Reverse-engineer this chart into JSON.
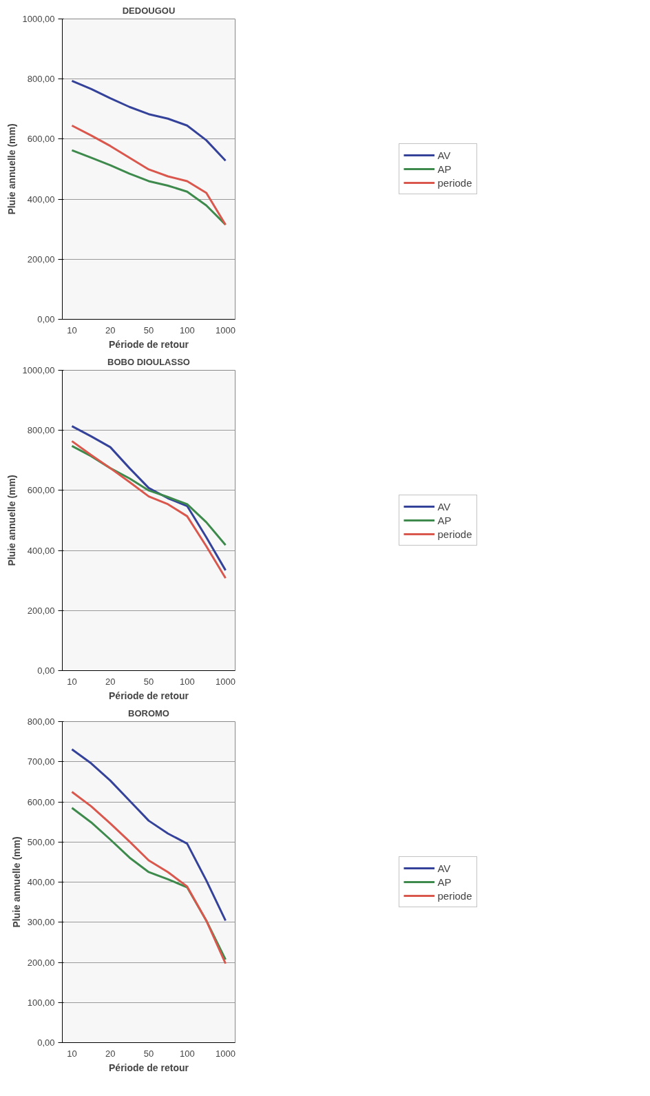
{
  "chart_data": [
    {
      "type": "line",
      "title": "DEDOUGOU",
      "xlabel": "Période de retour",
      "ylabel": "Pluie annuelle (mm)",
      "categories": [
        "10",
        null,
        "20",
        null,
        "50",
        null,
        "100",
        null,
        "1000"
      ],
      "ylim": [
        0,
        1000
      ],
      "yticks": [
        {
          "value": 0,
          "label": "0,00"
        },
        {
          "value": 200,
          "label": "200,00"
        },
        {
          "value": 400,
          "label": "400,00"
        },
        {
          "value": 600,
          "label": "600,00"
        },
        {
          "value": 800,
          "label": "800,00"
        },
        {
          "value": 1000,
          "label": "1000,00"
        }
      ],
      "grid": "y",
      "legend": "right",
      "marker": "none",
      "line_style": "solid",
      "series": [
        {
          "name": "AV",
          "color": "#34429a",
          "values": [
            794,
            767,
            736,
            707,
            683,
            668,
            645,
            596,
            528
          ]
        },
        {
          "name": "AP",
          "color": "#3d8a4c",
          "values": [
            563,
            538,
            513,
            485,
            460,
            445,
            425,
            379,
            315
          ]
        },
        {
          "name": "periode",
          "color": "#d9574c",
          "values": [
            645,
            612,
            577,
            538,
            499,
            476,
            460,
            421,
            315
          ]
        }
      ]
    },
    {
      "type": "line",
      "title": "BOBO DIOULASSO",
      "xlabel": "Période de retour",
      "ylabel": "Pluie annuelle (mm)",
      "categories": [
        "10",
        null,
        "20",
        null,
        "50",
        null,
        "100",
        null,
        "1000"
      ],
      "ylim": [
        0,
        1000
      ],
      "yticks": [
        {
          "value": 0,
          "label": "0,00"
        },
        {
          "value": 200,
          "label": "200,00"
        },
        {
          "value": 400,
          "label": "400,00"
        },
        {
          "value": 600,
          "label": "600,00"
        },
        {
          "value": 800,
          "label": "800,00"
        },
        {
          "value": 1000,
          "label": "1000,00"
        }
      ],
      "grid": "y",
      "legend": "right",
      "marker": "none",
      "line_style": "solid",
      "series": [
        {
          "name": "AV",
          "color": "#34429a",
          "values": [
            814,
            780,
            744,
            674,
            608,
            574,
            548,
            444,
            334
          ]
        },
        {
          "name": "AP",
          "color": "#3d8a4c",
          "values": [
            748,
            714,
            674,
            640,
            600,
            578,
            554,
            494,
            418
          ]
        },
        {
          "name": "periode",
          "color": "#d9574c",
          "values": [
            764,
            718,
            674,
            628,
            580,
            554,
            514,
            414,
            308
          ]
        }
      ]
    },
    {
      "type": "line",
      "title": "BOROMO",
      "xlabel": "Période de retour",
      "ylabel": "Pluie annuelle (mm)",
      "categories": [
        "10",
        null,
        "20",
        null,
        "50",
        null,
        "100",
        null,
        "1000"
      ],
      "ylim": [
        0,
        800
      ],
      "yticks": [
        {
          "value": 0,
          "label": "0,00"
        },
        {
          "value": 100,
          "label": "100,00"
        },
        {
          "value": 200,
          "label": "200,00"
        },
        {
          "value": 300,
          "label": "300,00"
        },
        {
          "value": 400,
          "label": "400,00"
        },
        {
          "value": 500,
          "label": "500,00"
        },
        {
          "value": 600,
          "label": "600,00"
        },
        {
          "value": 700,
          "label": "700,00"
        },
        {
          "value": 800,
          "label": "800,00"
        }
      ],
      "grid": "y",
      "legend": "right",
      "marker": "none",
      "line_style": "solid",
      "series": [
        {
          "name": "AV",
          "color": "#34429a",
          "values": [
            731,
            696,
            653,
            603,
            553,
            521,
            496,
            404,
            304
          ]
        },
        {
          "name": "AP",
          "color": "#3d8a4c",
          "values": [
            585,
            549,
            506,
            461,
            425,
            407,
            387,
            304,
            207
          ]
        },
        {
          "name": "periode",
          "color": "#d9574c",
          "values": [
            625,
            589,
            546,
            501,
            454,
            425,
            389,
            304,
            197
          ]
        }
      ]
    }
  ]
}
